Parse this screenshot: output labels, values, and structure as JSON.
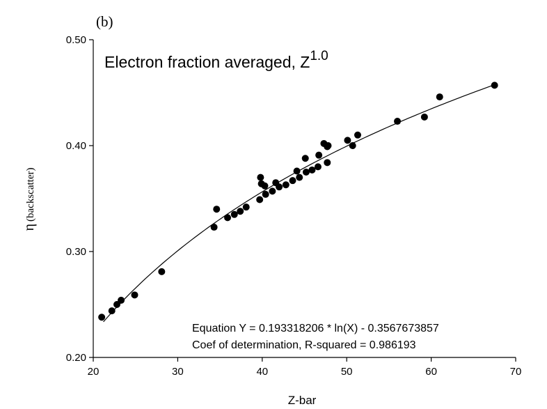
{
  "chart_data": {
    "type": "scatter",
    "panel_label": "(b)",
    "title": "Electron fraction averaged, Z",
    "title_superscript": "1.0",
    "xlabel": "Z-bar",
    "ylabel_symbol": "η",
    "ylabel_text": "(backscatter)",
    "xlim": [
      20,
      70
    ],
    "ylim": [
      0.2,
      0.5
    ],
    "xticks": [
      20,
      30,
      40,
      50,
      60,
      70
    ],
    "xtick_labels": [
      "20",
      "30",
      "40",
      "50",
      "60",
      "70"
    ],
    "yticks": [
      0.2,
      0.3,
      0.4,
      0.5
    ],
    "ytick_labels": [
      "0.20",
      "0.30",
      "0.40",
      "0.50"
    ],
    "grid": false,
    "points": {
      "x": [
        21.0,
        22.2,
        22.8,
        23.3,
        24.9,
        28.1,
        34.3,
        34.6,
        35.9,
        36.7,
        37.4,
        38.1,
        39.7,
        39.8,
        39.9,
        40.3,
        40.4,
        41.2,
        41.6,
        42.0,
        42.8,
        43.6,
        44.1,
        44.4,
        45.1,
        45.2,
        45.9,
        46.6,
        46.7,
        47.3,
        47.7,
        47.7,
        47.8,
        50.1,
        50.7,
        51.3,
        56.0,
        59.2,
        61.0,
        67.5
      ],
      "y": [
        0.238,
        0.244,
        0.25,
        0.254,
        0.259,
        0.281,
        0.323,
        0.34,
        0.332,
        0.335,
        0.338,
        0.342,
        0.349,
        0.37,
        0.364,
        0.362,
        0.354,
        0.357,
        0.365,
        0.361,
        0.363,
        0.367,
        0.376,
        0.37,
        0.388,
        0.375,
        0.377,
        0.38,
        0.391,
        0.402,
        0.384,
        0.399,
        0.4,
        0.405,
        0.4,
        0.41,
        0.423,
        0.427,
        0.446,
        0.457
      ]
    },
    "fit": {
      "type": "logarithmic",
      "a": 0.193318206,
      "b": -0.3567673857,
      "x_range": [
        21.2,
        67.5
      ]
    },
    "annotations": [
      "Equation Y = 0.193318206 * ln(X) - 0.3567673857",
      "Coef of determination, R-squared = 0.986193"
    ]
  }
}
